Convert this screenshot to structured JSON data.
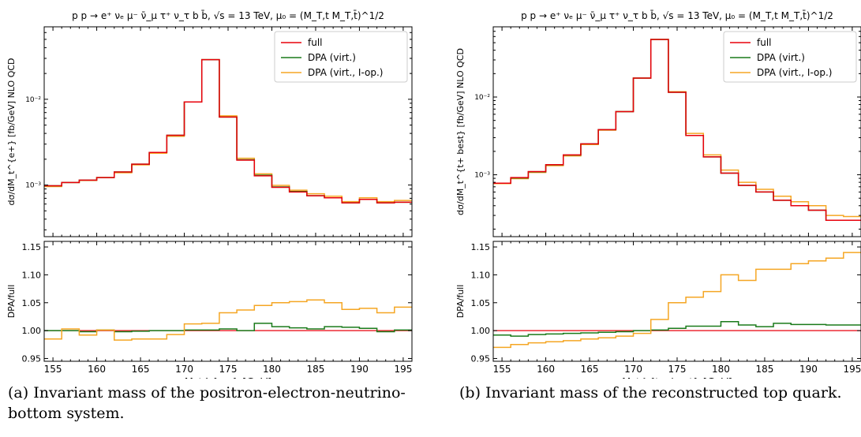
{
  "chart_data": [
    {
      "type": "line",
      "title": "p p → e⁺ νₑ μ⁻ ν̄_μ τ⁺ ν_τ b b̄, √s = 13 TeV, μ₀ = (M_T,t M_T,t̄)^1/2",
      "xlabel": "M_t^{e+} [GeV]",
      "ylabel_top": "dσ/dM_t^{e+} [fb/GeV] NLO QCD",
      "ylabel_bottom": "DPA/full",
      "xlim": [
        154,
        196
      ],
      "top": {
        "scale": "log",
        "ylim": [
          0.00025,
          0.07
        ],
        "ytick_labels": [
          "10⁻³",
          "10⁻²"
        ],
        "ytick_values": [
          0.001,
          0.01
        ]
      },
      "bottom": {
        "ylim": [
          0.945,
          1.16
        ],
        "ytick_labels": [
          "0.95",
          "1.00",
          "1.05",
          "1.10",
          "1.15"
        ],
        "ytick_values": [
          0.95,
          1.0,
          1.05,
          1.1,
          1.15
        ]
      },
      "xtick_labels": [
        "155",
        "160",
        "165",
        "170",
        "175",
        "180",
        "185",
        "190",
        "195"
      ],
      "xtick_values": [
        155,
        160,
        165,
        170,
        175,
        180,
        185,
        190,
        195
      ],
      "legend": {
        "placement": "top-right",
        "entries": [
          "full",
          "DPA (virt.)",
          "DPA (virt., I-op.)"
        ]
      },
      "bin_edges": [
        154,
        156,
        158,
        160,
        162,
        164,
        166,
        168,
        170,
        172,
        174,
        176,
        178,
        180,
        182,
        184,
        186,
        188,
        190,
        192,
        194,
        196
      ],
      "series": [
        {
          "name": "full",
          "color": "#e8000b",
          "values": [
            0.00098,
            0.00107,
            0.00114,
            0.00122,
            0.00142,
            0.00175,
            0.0024,
            0.0038,
            0.0093,
            0.029,
            0.0062,
            0.00195,
            0.00128,
            0.00094,
            0.00083,
            0.00075,
            0.00071,
            0.00062,
            0.00068,
            0.00062,
            0.00063
          ]
        },
        {
          "name": "DPA (virt.)",
          "color": "#1a7a1a",
          "values": [
            0.00098,
            0.00107,
            0.00114,
            0.00122,
            0.00142,
            0.00175,
            0.0024,
            0.0038,
            0.0093,
            0.029,
            0.0062,
            0.00197,
            0.0013,
            0.00095,
            0.00084,
            0.00075,
            0.00071,
            0.00062,
            0.00068,
            0.00062,
            0.00063
          ],
          "ratio": [
            1.0,
            1.0,
            0.998,
            1.001,
            0.998,
            0.999,
            1.0,
            1.0,
            1.001,
            1.001,
            1.003,
            1.0,
            1.013,
            1.007,
            1.005,
            1.003,
            1.007,
            1.006,
            1.004,
            0.998,
            1.001
          ]
        },
        {
          "name": "DPA (virt., I-op.)",
          "color": "#f5a623",
          "values": [
            0.00096,
            0.00107,
            0.00113,
            0.00122,
            0.00139,
            0.00172,
            0.00235,
            0.0037,
            0.0093,
            0.029,
            0.0064,
            0.00205,
            0.00135,
            0.00099,
            0.00087,
            0.00079,
            0.00074,
            0.00064,
            0.00071,
            0.00064,
            0.00066
          ],
          "ratio": [
            0.985,
            1.003,
            0.992,
            1.001,
            0.983,
            0.985,
            0.985,
            0.993,
            1.012,
            1.013,
            1.032,
            1.037,
            1.045,
            1.05,
            1.052,
            1.055,
            1.05,
            1.038,
            1.04,
            1.032,
            1.042
          ]
        }
      ]
    },
    {
      "type": "line",
      "title": "p p → e⁺ νₑ μ⁻ ν̄_μ τ⁺ ν_τ b b̄, √s = 13 TeV, μ₀ = (M_T,t M_T,t̄)^1/2",
      "xlabel": "M_t^{t+ best} [GeV]",
      "ylabel_top": "dσ/dM_t^{t+ best} [fb/GeV] NLO QCD",
      "ylabel_bottom": "DPA/full",
      "xlim": [
        154,
        196
      ],
      "top": {
        "scale": "log",
        "ylim": [
          0.00016,
          0.08
        ],
        "ytick_labels": [
          "10⁻³",
          "10⁻²"
        ],
        "ytick_values": [
          0.001,
          0.01
        ]
      },
      "bottom": {
        "ylim": [
          0.945,
          1.16
        ],
        "ytick_labels": [
          "0.95",
          "1.00",
          "1.05",
          "1.10",
          "1.15"
        ],
        "ytick_values": [
          0.95,
          1.0,
          1.05,
          1.1,
          1.15
        ]
      },
      "xtick_labels": [
        "155",
        "160",
        "165",
        "170",
        "175",
        "180",
        "185",
        "190",
        "195"
      ],
      "xtick_values": [
        155,
        160,
        165,
        170,
        175,
        180,
        185,
        190,
        195
      ],
      "legend": {
        "placement": "top-right",
        "entries": [
          "full",
          "DPA (virt.)",
          "DPA (virt., I-op.)"
        ]
      },
      "bin_edges": [
        154,
        156,
        158,
        160,
        162,
        164,
        166,
        168,
        170,
        172,
        174,
        176,
        178,
        180,
        182,
        184,
        186,
        188,
        190,
        192,
        194,
        196
      ],
      "series": [
        {
          "name": "full",
          "color": "#e8000b",
          "values": [
            0.00078,
            0.00092,
            0.0011,
            0.00135,
            0.0018,
            0.0025,
            0.0038,
            0.0065,
            0.0175,
            0.055,
            0.0115,
            0.0032,
            0.0017,
            0.00105,
            0.00073,
            0.0006,
            0.00047,
            0.0004,
            0.00035,
            0.00026,
            0.00026
          ]
        },
        {
          "name": "DPA (virt.)",
          "color": "#1a7a1a",
          "values": [
            0.00078,
            0.00091,
            0.00109,
            0.00134,
            0.00179,
            0.0025,
            0.0038,
            0.0065,
            0.0175,
            0.055,
            0.0115,
            0.0032,
            0.0017,
            0.00105,
            0.00073,
            0.0006,
            0.00047,
            0.0004,
            0.00035,
            0.00026,
            0.00026
          ],
          "ratio": [
            0.992,
            0.99,
            0.993,
            0.994,
            0.995,
            0.996,
            0.997,
            0.998,
            1.0,
            1.001,
            1.004,
            1.008,
            1.008,
            1.016,
            1.01,
            1.007,
            1.013,
            1.011,
            1.011,
            1.01,
            1.01
          ]
        },
        {
          "name": "DPA (virt., I-op.)",
          "color": "#f5a623",
          "values": [
            0.00077,
            0.00089,
            0.00107,
            0.00131,
            0.00175,
            0.00245,
            0.00375,
            0.0065,
            0.0175,
            0.055,
            0.0117,
            0.0034,
            0.0018,
            0.00115,
            0.0008,
            0.00065,
            0.00053,
            0.00045,
            0.0004,
            0.0003,
            0.00029
          ],
          "ratio": [
            0.97,
            0.975,
            0.978,
            0.98,
            0.982,
            0.985,
            0.987,
            0.99,
            0.995,
            1.02,
            1.05,
            1.06,
            1.07,
            1.1,
            1.09,
            1.11,
            1.11,
            1.12,
            1.125,
            1.13,
            1.14
          ]
        }
      ]
    }
  ],
  "captions": {
    "a": "(a) Invariant mass of the positron-electron-neutrino-bottom system.",
    "b": "(b) Invariant mass of the reconstructed top quark."
  }
}
